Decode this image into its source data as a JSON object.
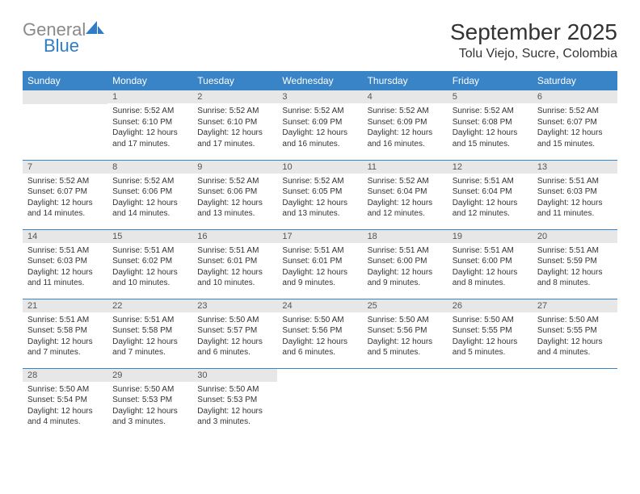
{
  "logo": {
    "general": "General",
    "blue": "Blue"
  },
  "header": {
    "month_title": "September 2025",
    "location": "Tolu Viejo, Sucre, Colombia"
  },
  "colors": {
    "header_bg": "#3884c7",
    "header_text": "#ffffff",
    "daynum_bg": "#e7e7e7",
    "row_divider": "#3884c7",
    "logo_gray": "#8a8a8a",
    "logo_blue": "#2f7dc4"
  },
  "weekdays": [
    "Sunday",
    "Monday",
    "Tuesday",
    "Wednesday",
    "Thursday",
    "Friday",
    "Saturday"
  ],
  "weeks": [
    [
      null,
      {
        "n": "1",
        "sr": "Sunrise: 5:52 AM",
        "ss": "Sunset: 6:10 PM",
        "dl": "Daylight: 12 hours and 17 minutes."
      },
      {
        "n": "2",
        "sr": "Sunrise: 5:52 AM",
        "ss": "Sunset: 6:10 PM",
        "dl": "Daylight: 12 hours and 17 minutes."
      },
      {
        "n": "3",
        "sr": "Sunrise: 5:52 AM",
        "ss": "Sunset: 6:09 PM",
        "dl": "Daylight: 12 hours and 16 minutes."
      },
      {
        "n": "4",
        "sr": "Sunrise: 5:52 AM",
        "ss": "Sunset: 6:09 PM",
        "dl": "Daylight: 12 hours and 16 minutes."
      },
      {
        "n": "5",
        "sr": "Sunrise: 5:52 AM",
        "ss": "Sunset: 6:08 PM",
        "dl": "Daylight: 12 hours and 15 minutes."
      },
      {
        "n": "6",
        "sr": "Sunrise: 5:52 AM",
        "ss": "Sunset: 6:07 PM",
        "dl": "Daylight: 12 hours and 15 minutes."
      }
    ],
    [
      {
        "n": "7",
        "sr": "Sunrise: 5:52 AM",
        "ss": "Sunset: 6:07 PM",
        "dl": "Daylight: 12 hours and 14 minutes."
      },
      {
        "n": "8",
        "sr": "Sunrise: 5:52 AM",
        "ss": "Sunset: 6:06 PM",
        "dl": "Daylight: 12 hours and 14 minutes."
      },
      {
        "n": "9",
        "sr": "Sunrise: 5:52 AM",
        "ss": "Sunset: 6:06 PM",
        "dl": "Daylight: 12 hours and 13 minutes."
      },
      {
        "n": "10",
        "sr": "Sunrise: 5:52 AM",
        "ss": "Sunset: 6:05 PM",
        "dl": "Daylight: 12 hours and 13 minutes."
      },
      {
        "n": "11",
        "sr": "Sunrise: 5:52 AM",
        "ss": "Sunset: 6:04 PM",
        "dl": "Daylight: 12 hours and 12 minutes."
      },
      {
        "n": "12",
        "sr": "Sunrise: 5:51 AM",
        "ss": "Sunset: 6:04 PM",
        "dl": "Daylight: 12 hours and 12 minutes."
      },
      {
        "n": "13",
        "sr": "Sunrise: 5:51 AM",
        "ss": "Sunset: 6:03 PM",
        "dl": "Daylight: 12 hours and 11 minutes."
      }
    ],
    [
      {
        "n": "14",
        "sr": "Sunrise: 5:51 AM",
        "ss": "Sunset: 6:03 PM",
        "dl": "Daylight: 12 hours and 11 minutes."
      },
      {
        "n": "15",
        "sr": "Sunrise: 5:51 AM",
        "ss": "Sunset: 6:02 PM",
        "dl": "Daylight: 12 hours and 10 minutes."
      },
      {
        "n": "16",
        "sr": "Sunrise: 5:51 AM",
        "ss": "Sunset: 6:01 PM",
        "dl": "Daylight: 12 hours and 10 minutes."
      },
      {
        "n": "17",
        "sr": "Sunrise: 5:51 AM",
        "ss": "Sunset: 6:01 PM",
        "dl": "Daylight: 12 hours and 9 minutes."
      },
      {
        "n": "18",
        "sr": "Sunrise: 5:51 AM",
        "ss": "Sunset: 6:00 PM",
        "dl": "Daylight: 12 hours and 9 minutes."
      },
      {
        "n": "19",
        "sr": "Sunrise: 5:51 AM",
        "ss": "Sunset: 6:00 PM",
        "dl": "Daylight: 12 hours and 8 minutes."
      },
      {
        "n": "20",
        "sr": "Sunrise: 5:51 AM",
        "ss": "Sunset: 5:59 PM",
        "dl": "Daylight: 12 hours and 8 minutes."
      }
    ],
    [
      {
        "n": "21",
        "sr": "Sunrise: 5:51 AM",
        "ss": "Sunset: 5:58 PM",
        "dl": "Daylight: 12 hours and 7 minutes."
      },
      {
        "n": "22",
        "sr": "Sunrise: 5:51 AM",
        "ss": "Sunset: 5:58 PM",
        "dl": "Daylight: 12 hours and 7 minutes."
      },
      {
        "n": "23",
        "sr": "Sunrise: 5:50 AM",
        "ss": "Sunset: 5:57 PM",
        "dl": "Daylight: 12 hours and 6 minutes."
      },
      {
        "n": "24",
        "sr": "Sunrise: 5:50 AM",
        "ss": "Sunset: 5:56 PM",
        "dl": "Daylight: 12 hours and 6 minutes."
      },
      {
        "n": "25",
        "sr": "Sunrise: 5:50 AM",
        "ss": "Sunset: 5:56 PM",
        "dl": "Daylight: 12 hours and 5 minutes."
      },
      {
        "n": "26",
        "sr": "Sunrise: 5:50 AM",
        "ss": "Sunset: 5:55 PM",
        "dl": "Daylight: 12 hours and 5 minutes."
      },
      {
        "n": "27",
        "sr": "Sunrise: 5:50 AM",
        "ss": "Sunset: 5:55 PM",
        "dl": "Daylight: 12 hours and 4 minutes."
      }
    ],
    [
      {
        "n": "28",
        "sr": "Sunrise: 5:50 AM",
        "ss": "Sunset: 5:54 PM",
        "dl": "Daylight: 12 hours and 4 minutes."
      },
      {
        "n": "29",
        "sr": "Sunrise: 5:50 AM",
        "ss": "Sunset: 5:53 PM",
        "dl": "Daylight: 12 hours and 3 minutes."
      },
      {
        "n": "30",
        "sr": "Sunrise: 5:50 AM",
        "ss": "Sunset: 5:53 PM",
        "dl": "Daylight: 12 hours and 3 minutes."
      },
      null,
      null,
      null,
      null
    ]
  ]
}
